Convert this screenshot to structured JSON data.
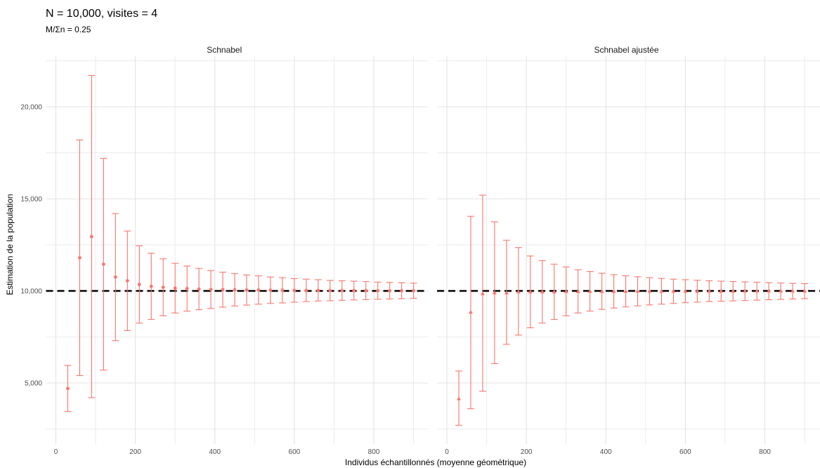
{
  "chart_data": [
    {
      "type": "scatter",
      "panel": "Schnabel",
      "title": "N = 10,000, visites = 4",
      "subtitle": "M/Σn = 0.25",
      "xlabel": "Individus échantillonnés (moyenne géométrique)",
      "ylabel": "Estimation de la population",
      "xlim": [
        0,
        960
      ],
      "ylim": [
        1800,
        22300
      ],
      "x_ticks": [
        0,
        200,
        400,
        600,
        800
      ],
      "y_ticks": [
        5000,
        10000,
        15000,
        20000
      ],
      "reference_line": 10000,
      "marker": "circle",
      "color": "#F8766D",
      "grid": true,
      "points": [
        {
          "x": 30,
          "y": 4700,
          "lo": 3450,
          "hi": 5950
        },
        {
          "x": 60,
          "y": 11800,
          "lo": 5400,
          "hi": 18200
        },
        {
          "x": 90,
          "y": 12950,
          "lo": 4200,
          "hi": 21700
        },
        {
          "x": 120,
          "y": 11450,
          "lo": 5700,
          "hi": 17200
        },
        {
          "x": 150,
          "y": 10750,
          "lo": 7300,
          "hi": 14200
        },
        {
          "x": 180,
          "y": 10550,
          "lo": 7850,
          "hi": 13250
        },
        {
          "x": 210,
          "y": 10350,
          "lo": 8250,
          "hi": 12450
        },
        {
          "x": 240,
          "y": 10250,
          "lo": 8450,
          "hi": 12050
        },
        {
          "x": 270,
          "y": 10200,
          "lo": 8650,
          "hi": 11750
        },
        {
          "x": 300,
          "y": 10150,
          "lo": 8800,
          "hi": 11500
        },
        {
          "x": 330,
          "y": 10130,
          "lo": 8900,
          "hi": 11350
        },
        {
          "x": 360,
          "y": 10100,
          "lo": 8980,
          "hi": 11220
        },
        {
          "x": 390,
          "y": 10080,
          "lo": 9050,
          "hi": 11110
        },
        {
          "x": 420,
          "y": 10070,
          "lo": 9120,
          "hi": 11020
        },
        {
          "x": 450,
          "y": 10060,
          "lo": 9180,
          "hi": 10940
        },
        {
          "x": 480,
          "y": 10050,
          "lo": 9230,
          "hi": 10870
        },
        {
          "x": 510,
          "y": 10050,
          "lo": 9280,
          "hi": 10820
        },
        {
          "x": 540,
          "y": 10040,
          "lo": 9320,
          "hi": 10760
        },
        {
          "x": 570,
          "y": 10040,
          "lo": 9350,
          "hi": 10720
        },
        {
          "x": 600,
          "y": 10030,
          "lo": 9390,
          "hi": 10670
        },
        {
          "x": 630,
          "y": 10030,
          "lo": 9420,
          "hi": 10640
        },
        {
          "x": 660,
          "y": 10030,
          "lo": 9450,
          "hi": 10610
        },
        {
          "x": 690,
          "y": 10020,
          "lo": 9470,
          "hi": 10570
        },
        {
          "x": 720,
          "y": 10020,
          "lo": 9490,
          "hi": 10550
        },
        {
          "x": 750,
          "y": 10020,
          "lo": 9510,
          "hi": 10530
        },
        {
          "x": 780,
          "y": 10020,
          "lo": 9530,
          "hi": 10510
        },
        {
          "x": 810,
          "y": 10010,
          "lo": 9550,
          "hi": 10480
        },
        {
          "x": 840,
          "y": 10010,
          "lo": 9560,
          "hi": 10460
        },
        {
          "x": 870,
          "y": 10010,
          "lo": 9580,
          "hi": 10440
        },
        {
          "x": 900,
          "y": 10010,
          "lo": 9600,
          "hi": 10420
        }
      ]
    },
    {
      "type": "scatter",
      "panel": "Schnabel ajustée",
      "xlim": [
        0,
        960
      ],
      "ylim": [
        1800,
        22300
      ],
      "x_ticks": [
        0,
        200,
        400,
        600,
        800
      ],
      "y_ticks": [
        5000,
        10000,
        15000,
        20000
      ],
      "reference_line": 10000,
      "marker": "triangle",
      "color": "#F8766D",
      "grid": true,
      "points": [
        {
          "x": 30,
          "y": 4150,
          "lo": 2700,
          "hi": 5650
        },
        {
          "x": 60,
          "y": 8850,
          "lo": 3600,
          "hi": 14050
        },
        {
          "x": 90,
          "y": 9850,
          "lo": 4550,
          "hi": 15200
        },
        {
          "x": 120,
          "y": 9900,
          "lo": 6050,
          "hi": 13750
        },
        {
          "x": 150,
          "y": 9900,
          "lo": 7100,
          "hi": 12750
        },
        {
          "x": 180,
          "y": 9950,
          "lo": 7600,
          "hi": 12350
        },
        {
          "x": 210,
          "y": 9950,
          "lo": 8000,
          "hi": 11900
        },
        {
          "x": 240,
          "y": 9950,
          "lo": 8250,
          "hi": 11650
        },
        {
          "x": 270,
          "y": 9950,
          "lo": 8450,
          "hi": 11450
        },
        {
          "x": 300,
          "y": 9970,
          "lo": 8650,
          "hi": 11300
        },
        {
          "x": 330,
          "y": 9970,
          "lo": 8800,
          "hi": 11150
        },
        {
          "x": 360,
          "y": 9980,
          "lo": 8900,
          "hi": 11050
        },
        {
          "x": 390,
          "y": 9980,
          "lo": 9000,
          "hi": 10960
        },
        {
          "x": 420,
          "y": 9980,
          "lo": 9070,
          "hi": 10880
        },
        {
          "x": 450,
          "y": 9980,
          "lo": 9130,
          "hi": 10820
        },
        {
          "x": 480,
          "y": 9990,
          "lo": 9190,
          "hi": 10770
        },
        {
          "x": 510,
          "y": 9990,
          "lo": 9240,
          "hi": 10720
        },
        {
          "x": 540,
          "y": 9990,
          "lo": 9280,
          "hi": 10680
        },
        {
          "x": 570,
          "y": 9990,
          "lo": 9320,
          "hi": 10640
        },
        {
          "x": 600,
          "y": 9990,
          "lo": 9360,
          "hi": 10610
        },
        {
          "x": 630,
          "y": 9990,
          "lo": 9390,
          "hi": 10580
        },
        {
          "x": 660,
          "y": 9990,
          "lo": 9420,
          "hi": 10550
        },
        {
          "x": 690,
          "y": 9990,
          "lo": 9440,
          "hi": 10530
        },
        {
          "x": 720,
          "y": 9990,
          "lo": 9460,
          "hi": 10510
        },
        {
          "x": 750,
          "y": 10000,
          "lo": 9480,
          "hi": 10490
        },
        {
          "x": 780,
          "y": 10000,
          "lo": 9500,
          "hi": 10470
        },
        {
          "x": 810,
          "y": 10000,
          "lo": 9520,
          "hi": 10450
        },
        {
          "x": 840,
          "y": 10000,
          "lo": 9540,
          "hi": 10430
        },
        {
          "x": 870,
          "y": 10000,
          "lo": 9560,
          "hi": 10410
        },
        {
          "x": 900,
          "y": 10000,
          "lo": 9580,
          "hi": 10400
        }
      ]
    }
  ]
}
